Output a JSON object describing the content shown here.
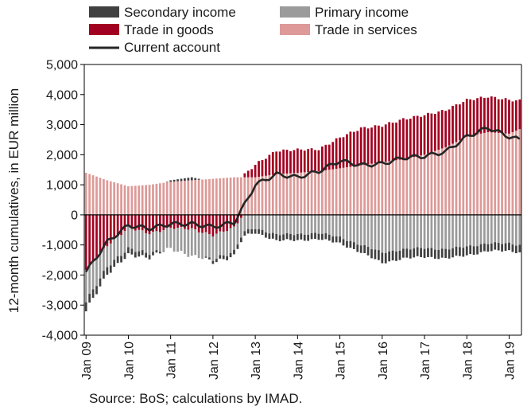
{
  "chart_data": {
    "type": "bar",
    "stacked": true,
    "ylabel": "12-month cumulatives, in EUR million",
    "ylim": [
      -4000,
      5000
    ],
    "yticks": [
      -4000,
      -3000,
      -2000,
      -1000,
      0,
      1000,
      2000,
      3000,
      4000,
      5000
    ],
    "ytick_labels": [
      "-4,000",
      "-3,000",
      "-2,000",
      "-1,000",
      "0",
      "1,000",
      "2,000",
      "3,000",
      "4,000",
      "5,000"
    ],
    "x_start": "Jan 09",
    "x_end": "Apr 19",
    "xtick_labels": [
      "Jan 09",
      "Jan 10",
      "Jan 11",
      "Jan 12",
      "Jan 13",
      "Jan 14",
      "Jan 15",
      "Jan 16",
      "Jan 17",
      "Jan 18",
      "Jan 19"
    ],
    "grid": false,
    "legend_position": "top",
    "keyframes": [
      {
        "m": "Jan 09",
        "trade_goods": -1850,
        "trade_services": 1400,
        "primary_income": -1050,
        "secondary_income": -300,
        "current_account": -1900
      },
      {
        "m": "Jul 09",
        "trade_goods": -1000,
        "trade_services": 1150,
        "primary_income": -700,
        "secondary_income": -250,
        "current_account": -900
      },
      {
        "m": "Jan 10",
        "trade_goods": -450,
        "trade_services": 950,
        "primary_income": -700,
        "secondary_income": -200,
        "current_account": -350
      },
      {
        "m": "Jul 10",
        "trade_goods": -600,
        "trade_services": 1000,
        "primary_income": -650,
        "secondary_income": -150,
        "current_account": -450
      },
      {
        "m": "Jan 11",
        "trade_goods": -450,
        "trade_services": 1100,
        "primary_income": -700,
        "secondary_income": 50,
        "current_account": -300
      },
      {
        "m": "Jul 11",
        "trade_goods": -450,
        "trade_services": 1150,
        "primary_income": -900,
        "secondary_income": 100,
        "current_account": -300
      },
      {
        "m": "Jan 12",
        "trade_goods": -700,
        "trade_services": 1200,
        "primary_income": -800,
        "secondary_income": -100,
        "current_account": -400
      },
      {
        "m": "Jul 12",
        "trade_goods": -400,
        "trade_services": 1250,
        "primary_income": -800,
        "secondary_income": -150,
        "current_account": -250
      },
      {
        "m": "Oct 12",
        "trade_goods": 100,
        "trade_services": 1250,
        "primary_income": -550,
        "secondary_income": -150,
        "current_account": 350
      },
      {
        "m": "Jan 13",
        "trade_goods": 400,
        "trade_services": 1250,
        "primary_income": -450,
        "secondary_income": -150,
        "current_account": 1000
      },
      {
        "m": "Jul 13",
        "trade_goods": 800,
        "trade_services": 1350,
        "primary_income": -650,
        "secondary_income": -200,
        "current_account": 1350
      },
      {
        "m": "Jan 14",
        "trade_goods": 750,
        "trade_services": 1400,
        "primary_income": -650,
        "secondary_income": -200,
        "current_account": 1250
      },
      {
        "m": "Jul 14",
        "trade_goods": 750,
        "trade_services": 1450,
        "primary_income": -600,
        "secondary_income": -200,
        "current_account": 1450
      },
      {
        "m": "Jan 15",
        "trade_goods": 1000,
        "trade_services": 1550,
        "primary_income": -750,
        "secondary_income": -200,
        "current_account": 1800
      },
      {
        "m": "Jul 15",
        "trade_goods": 1250,
        "trade_services": 1650,
        "primary_income": -1000,
        "secondary_income": -250,
        "current_account": 1650
      },
      {
        "m": "Jan 16",
        "trade_goods": 1200,
        "trade_services": 1750,
        "primary_income": -1250,
        "secondary_income": -350,
        "current_account": 1700
      },
      {
        "m": "Jul 16",
        "trade_goods": 1350,
        "trade_services": 1850,
        "primary_income": -1150,
        "secondary_income": -300,
        "current_account": 1900
      },
      {
        "m": "Jan 17",
        "trade_goods": 1300,
        "trade_services": 2000,
        "primary_income": -1100,
        "secondary_income": -300,
        "current_account": 1950
      },
      {
        "m": "Jul 17",
        "trade_goods": 1250,
        "trade_services": 2250,
        "primary_income": -1150,
        "secondary_income": -300,
        "current_account": 2100
      },
      {
        "m": "Jan 18",
        "trade_goods": 1200,
        "trade_services": 2600,
        "primary_income": -1050,
        "secondary_income": -300,
        "current_account": 2600
      },
      {
        "m": "Jul 18",
        "trade_goods": 1200,
        "trade_services": 2750,
        "primary_income": -950,
        "secondary_income": -250,
        "current_account": 2900
      },
      {
        "m": "Jan 19",
        "trade_goods": 1100,
        "trade_services": 2700,
        "primary_income": -950,
        "secondary_income": -250,
        "current_account": 2600
      },
      {
        "m": "Apr 19",
        "trade_goods": 950,
        "trade_services": 2850,
        "primary_income": -1000,
        "secondary_income": -250,
        "current_account": 2500
      }
    ],
    "series": [
      {
        "key": "secondary_income",
        "name": "Secondary income",
        "color": "#404040"
      },
      {
        "key": "primary_income",
        "name": "Primary income",
        "color": "#9b9b9b"
      },
      {
        "key": "trade_goods",
        "name": "Trade in goods",
        "color": "#a20020"
      },
      {
        "key": "trade_services",
        "name": "Trade in services",
        "color": "#dd9a98"
      },
      {
        "key": "current_account",
        "name": "Current account",
        "color": "#262626",
        "type": "line"
      }
    ]
  },
  "source_text": "Source: BoS; calculations by IMAD."
}
